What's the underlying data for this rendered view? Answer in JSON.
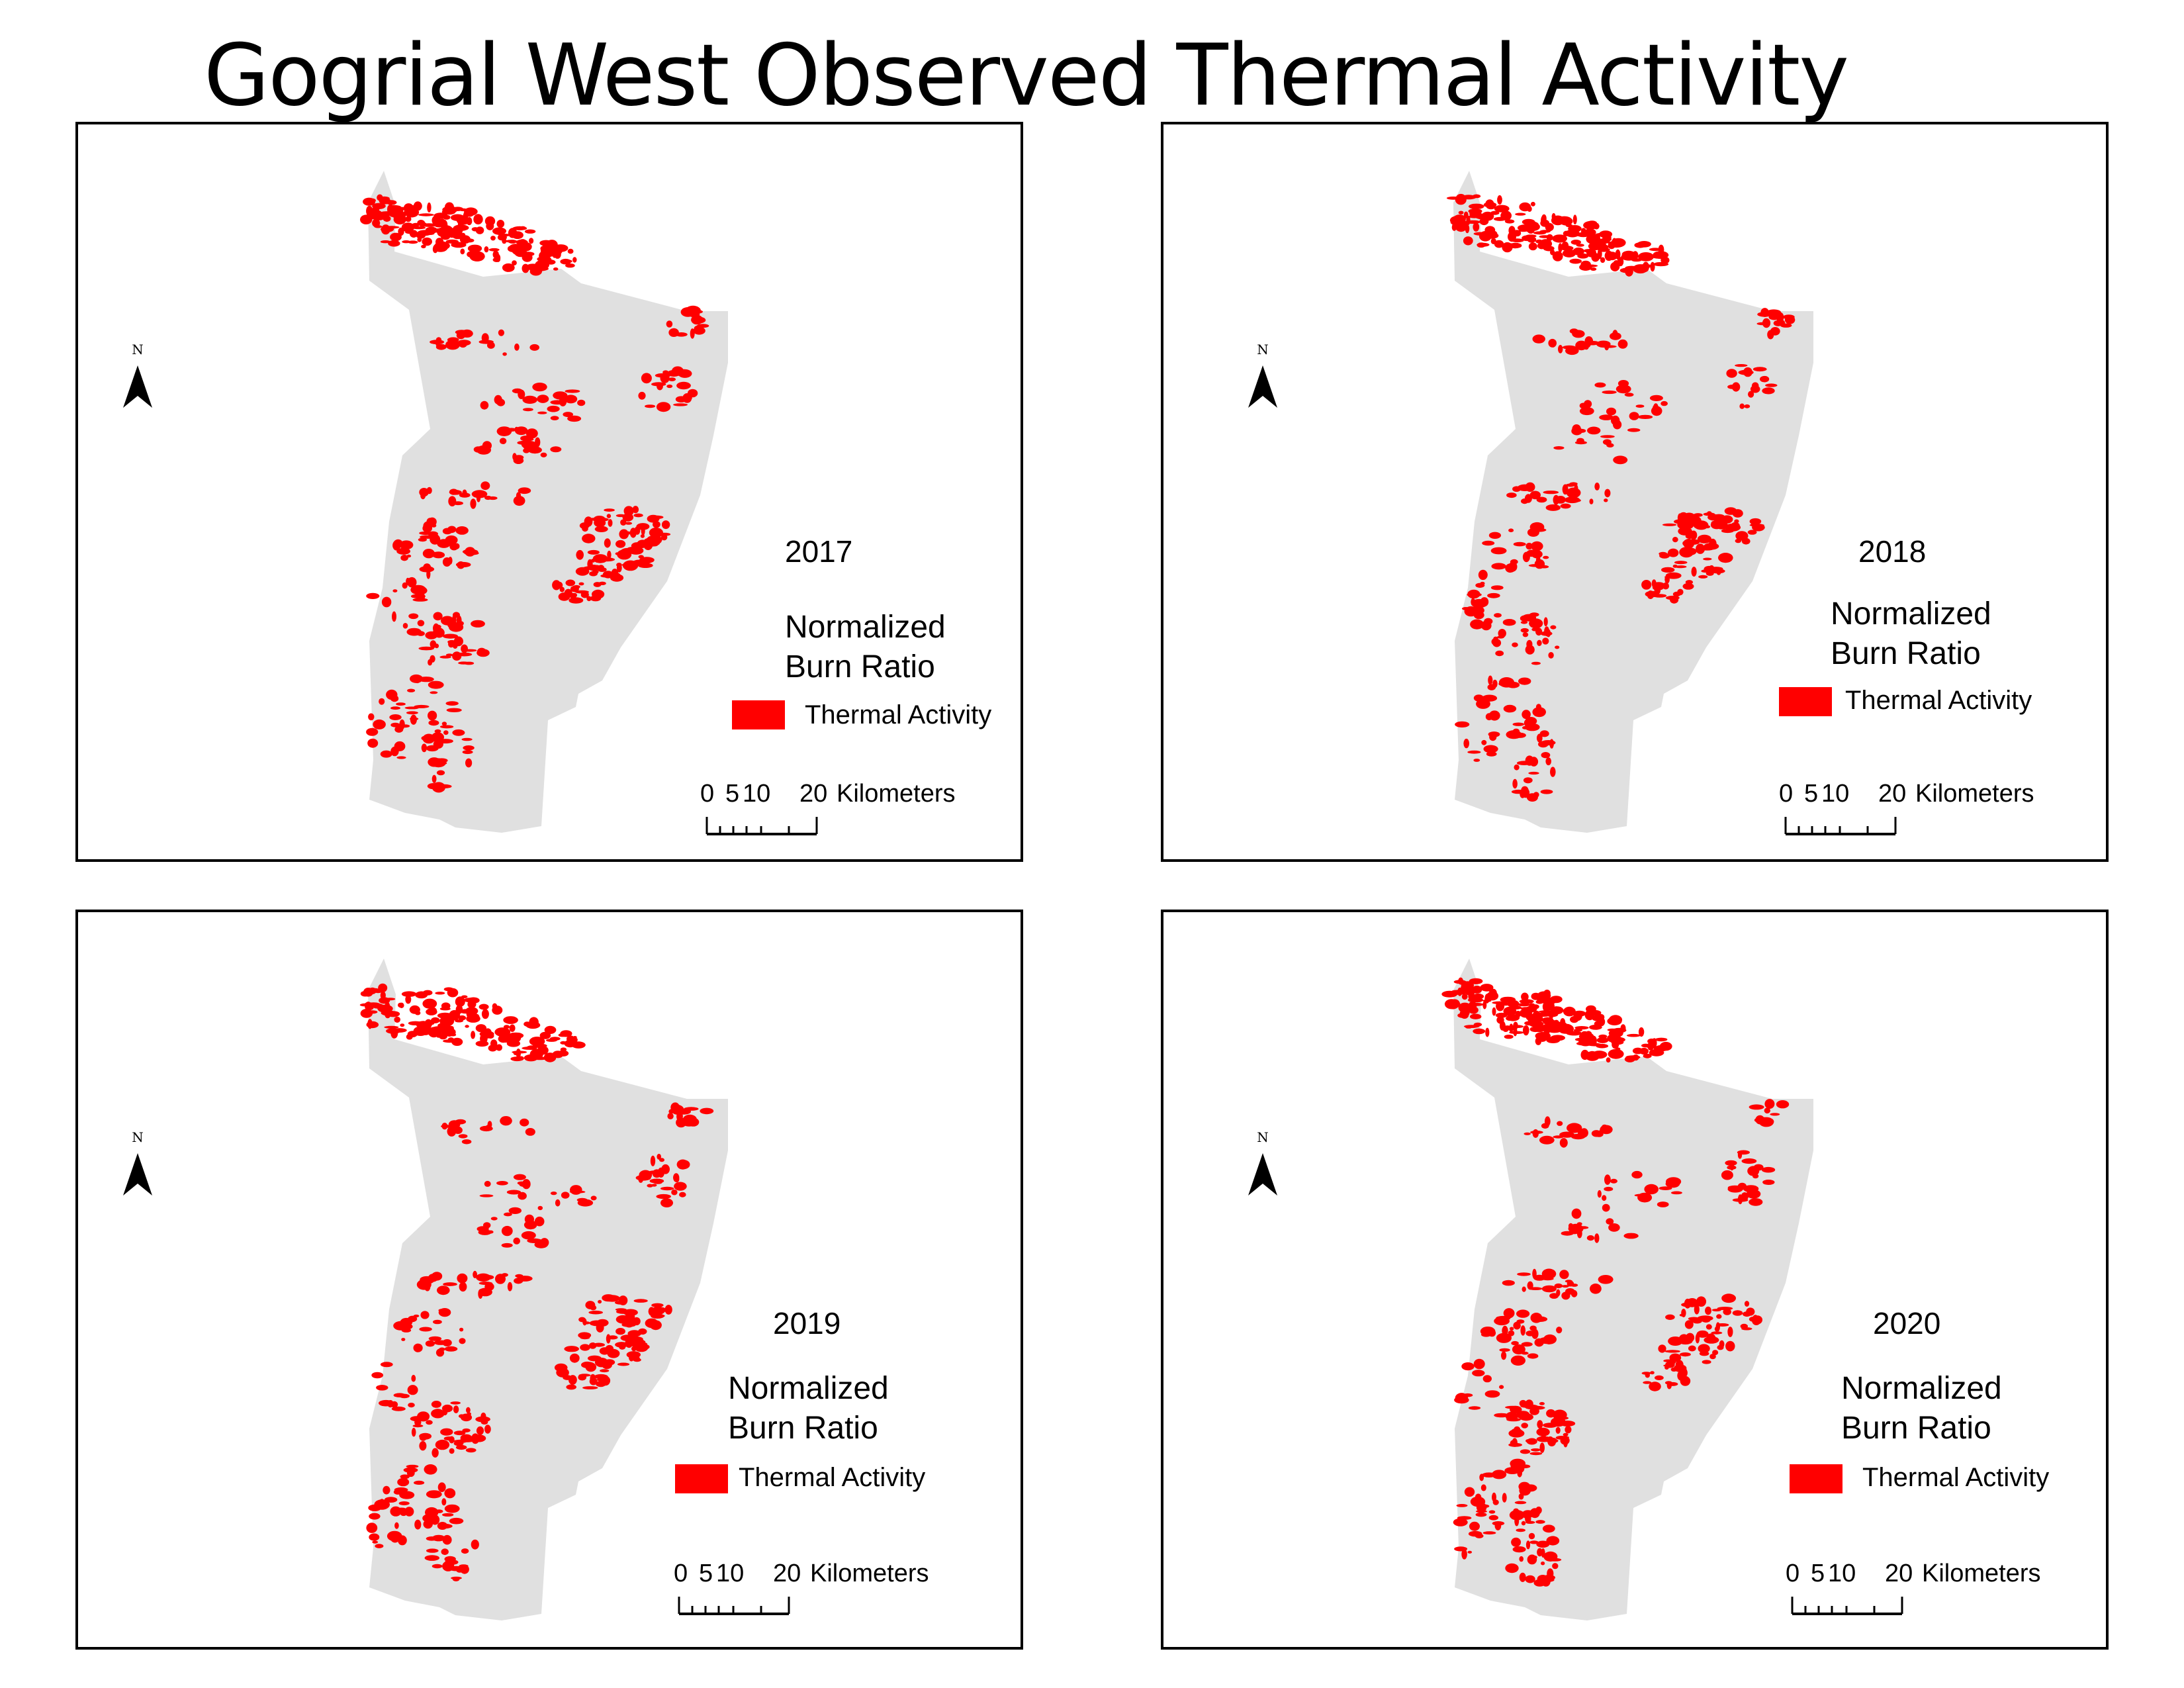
{
  "title": "Gogrial West Observed Thermal Activity",
  "colors": {
    "burn": "#ff0000",
    "land": "#e0e0e0",
    "frame": "#000000"
  },
  "north_arrow": {
    "letter": "N"
  },
  "legend": {
    "title_line1": "Normalized",
    "title_line2": "Burn Ratio",
    "item_label": "Thermal Activity"
  },
  "scale": {
    "labels": [
      "0",
      "5",
      "10",
      "20"
    ],
    "unit": "Kilometers"
  },
  "panels": [
    {
      "year": "2017"
    },
    {
      "year": "2018"
    },
    {
      "year": "2019"
    },
    {
      "year": "2020"
    }
  ]
}
